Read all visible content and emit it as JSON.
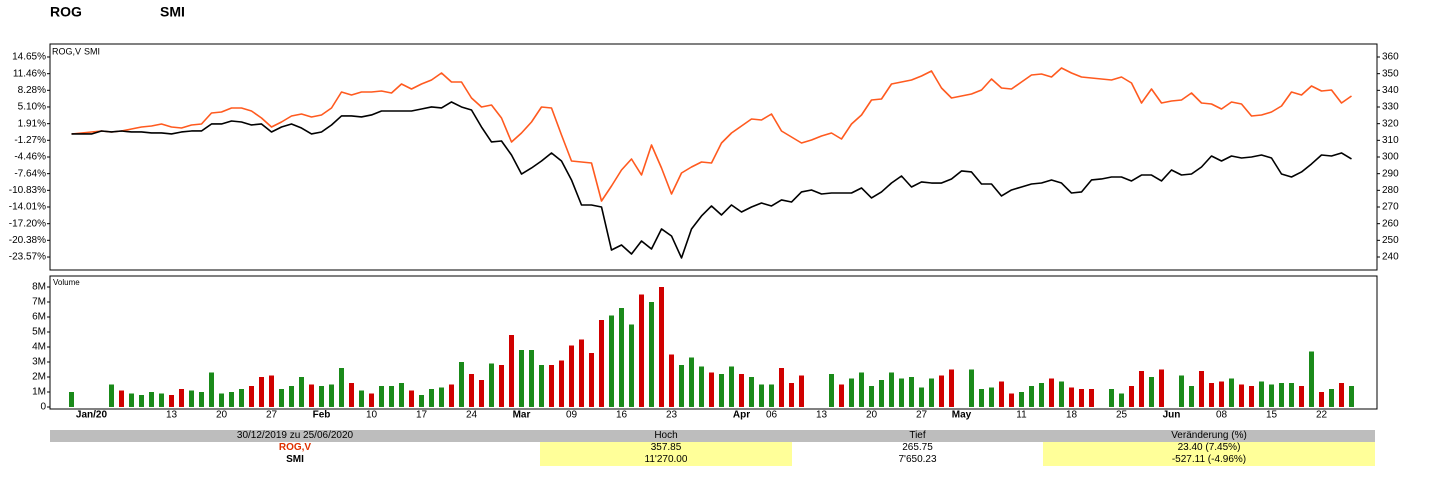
{
  "header": {
    "symbols": [
      {
        "text": "ROG",
        "color": "#ff4a12"
      },
      {
        "text": "SMI",
        "color": "#000000"
      }
    ]
  },
  "chart_data": [
    {
      "type": "line",
      "legend": "top-left",
      "ylim": [
        -26.05,
        17.13
      ],
      "yticks": [
        {
          "value": 14.65,
          "label": "14.65%"
        },
        {
          "value": 11.46,
          "label": "11.46%"
        },
        {
          "value": 8.28,
          "label": "8.28%"
        },
        {
          "value": 5.1,
          "label": "5.10%"
        },
        {
          "value": 1.91,
          "label": "1.91%"
        },
        {
          "value": -1.27,
          "label": "-1.27%"
        },
        {
          "value": -4.46,
          "label": "-4.46%"
        },
        {
          "value": -7.64,
          "label": "-7.64%"
        },
        {
          "value": -10.83,
          "label": "-10.83%"
        },
        {
          "value": -14.01,
          "label": "-14.01%"
        },
        {
          "value": -17.2,
          "label": "-17.20%"
        },
        {
          "value": -20.38,
          "label": "-20.38%"
        },
        {
          "value": -23.57,
          "label": "-23.57%"
        }
      ],
      "y2lim": [
        232.2,
        367.8
      ],
      "y2ticks": [
        360,
        350,
        340,
        330,
        320,
        310,
        300,
        290,
        280,
        270,
        260,
        250,
        240
      ],
      "series": [
        {
          "name": "ROG,V",
          "color": "#ff5a1f",
          "axis": "y2",
          "values": [
            313.8,
            314.4,
            315.0,
            315.6,
            315.0,
            315.6,
            316.8,
            318.0,
            318.6,
            319.8,
            318.0,
            317.4,
            319.2,
            319.8,
            326.4,
            327.0,
            329.4,
            329.4,
            327.6,
            323.4,
            318.0,
            321.0,
            324.6,
            325.8,
            324.0,
            325.2,
            329.4,
            339.0,
            337.2,
            339.0,
            339.0,
            339.6,
            338.4,
            343.8,
            340.8,
            343.8,
            346.2,
            350.4,
            345.0,
            345.0,
            335.4,
            330.0,
            331.2,
            323.4,
            309.0,
            314.4,
            321.0,
            330.0,
            329.4,
            313.2,
            297.6,
            297.0,
            296.4,
            273.6,
            282.6,
            292.2,
            298.8,
            289.2,
            307.2,
            293.4,
            277.8,
            290.4,
            294.0,
            297.0,
            296.4,
            308.4,
            314.4,
            318.6,
            322.8,
            322.2,
            325.8,
            315.6,
            312.0,
            308.4,
            310.2,
            312.6,
            314.4,
            310.8,
            319.8,
            325.2,
            334.2,
            334.8,
            343.8,
            345.0,
            346.2,
            348.6,
            351.6,
            341.4,
            335.4,
            336.6,
            337.8,
            340.2,
            346.8,
            341.4,
            340.8,
            345.0,
            349.2,
            349.8,
            348.0,
            353.4,
            350.4,
            348.0,
            347.4,
            346.8,
            346.2,
            348.0,
            344.4,
            332.4,
            340.8,
            332.4,
            333.6,
            334.2,
            338.4,
            332.4,
            331.8,
            328.8,
            333.0,
            331.8,
            324.6,
            325.2,
            327.0,
            330.6,
            339.0,
            337.2,
            342.6,
            339.6,
            340.2,
            332.4,
            336.6
          ]
        },
        {
          "name": "SMI",
          "color": "#000000",
          "values": [
            -0.06,
            -0.06,
            -0.06,
            0.51,
            0.32,
            0.51,
            0.32,
            0.32,
            0.13,
            0.13,
            -0.06,
            0.32,
            0.51,
            0.51,
            1.85,
            1.85,
            2.42,
            2.23,
            1.66,
            1.85,
            0.32,
            1.27,
            1.85,
            1.08,
            -0.06,
            0.32,
            1.66,
            3.38,
            3.38,
            3.19,
            3.57,
            4.33,
            4.33,
            4.33,
            4.33,
            4.71,
            5.1,
            4.91,
            6.05,
            5.1,
            4.52,
            1.27,
            -1.59,
            -1.4,
            -4.08,
            -7.71,
            -6.56,
            -5.22,
            -3.69,
            -5.22,
            -8.85,
            -13.63,
            -13.63,
            -14.01,
            -22.23,
            -21.27,
            -22.99,
            -20.51,
            -22.04,
            -18.21,
            -19.55,
            -23.75,
            -18.21,
            -15.73,
            -13.82,
            -15.54,
            -13.63,
            -14.97,
            -14.01,
            -13.25,
            -13.82,
            -12.67,
            -13.06,
            -11.14,
            -10.76,
            -11.53,
            -11.34,
            -11.34,
            -11.34,
            -10.38,
            -12.29,
            -11.14,
            -9.43,
            -8.09,
            -10.19,
            -9.23,
            -9.43,
            -9.43,
            -8.66,
            -7.13,
            -7.32,
            -9.62,
            -9.62,
            -11.91,
            -10.76,
            -10.19,
            -9.62,
            -9.43,
            -8.85,
            -9.43,
            -11.34,
            -11.14,
            -8.85,
            -8.66,
            -8.28,
            -8.28,
            -9.04,
            -7.9,
            -7.9,
            -9.04,
            -6.94,
            -7.9,
            -7.71,
            -6.37,
            -4.27,
            -5.22,
            -4.27,
            -4.65,
            -4.46,
            -4.08,
            -4.65,
            -7.71,
            -8.28,
            -7.32,
            -5.79,
            -4.08,
            -4.27,
            -3.69,
            -4.84
          ]
        }
      ]
    },
    {
      "type": "bar",
      "title": "Volume",
      "ylim": [
        0,
        8.6
      ],
      "yticks": [
        {
          "value": 8,
          "label": "8M"
        },
        {
          "value": 7,
          "label": "7M"
        },
        {
          "value": 6,
          "label": "6M"
        },
        {
          "value": 5,
          "label": "5M"
        },
        {
          "value": 4,
          "label": "4M"
        },
        {
          "value": 3,
          "label": "3M"
        },
        {
          "value": 2,
          "label": "2M"
        },
        {
          "value": 1,
          "label": "1M"
        },
        0
      ],
      "categories": [
        null,
        null,
        "Jan/20",
        null,
        null,
        null,
        null,
        null,
        null,
        null,
        "13",
        null,
        null,
        null,
        null,
        "20",
        null,
        null,
        null,
        null,
        "27",
        null,
        null,
        null,
        null,
        "Feb",
        null,
        null,
        null,
        null,
        "10",
        null,
        null,
        null,
        null,
        "17",
        null,
        null,
        null,
        null,
        "24",
        null,
        null,
        null,
        null,
        "Mar",
        null,
        null,
        null,
        null,
        "09",
        null,
        null,
        null,
        null,
        "16",
        null,
        null,
        null,
        null,
        "23",
        null,
        null,
        null,
        null,
        null,
        null,
        "Apr",
        null,
        null,
        "06",
        null,
        null,
        null,
        null,
        "13",
        null,
        null,
        null,
        null,
        "20",
        null,
        null,
        null,
        null,
        "27",
        null,
        null,
        null,
        "May",
        null,
        null,
        null,
        null,
        null,
        "11",
        null,
        null,
        null,
        null,
        "18",
        null,
        null,
        null,
        null,
        "25",
        null,
        null,
        null,
        null,
        "Jun",
        null,
        null,
        null,
        null,
        "08",
        null,
        null,
        null,
        null,
        "15",
        null,
        null,
        null,
        null,
        "22",
        null,
        null,
        null
      ],
      "values": [
        1.0,
        null,
        null,
        null,
        1.5,
        1.1,
        0.9,
        0.8,
        1.0,
        0.9,
        0.8,
        1.2,
        1.1,
        1.0,
        2.3,
        0.9,
        1.0,
        1.2,
        1.4,
        2.0,
        2.1,
        1.2,
        1.4,
        2.0,
        1.5,
        1.4,
        1.5,
        2.6,
        1.6,
        1.1,
        0.9,
        1.4,
        1.4,
        1.6,
        1.1,
        0.8,
        1.2,
        1.3,
        1.5,
        3.0,
        2.2,
        1.8,
        2.9,
        2.8,
        4.8,
        3.8,
        3.8,
        2.8,
        2.8,
        3.1,
        4.1,
        4.5,
        3.6,
        5.8,
        6.1,
        6.6,
        5.5,
        7.5,
        7.0,
        8.0,
        3.5,
        2.8,
        3.3,
        2.7,
        2.3,
        2.2,
        2.7,
        2.2,
        2.0,
        1.5,
        1.5,
        2.6,
        1.6,
        2.1,
        null,
        null,
        2.2,
        1.5,
        1.9,
        2.3,
        1.4,
        1.8,
        2.3,
        1.9,
        2.0,
        1.3,
        1.9,
        2.1,
        2.5,
        null,
        2.5,
        1.2,
        1.3,
        1.7,
        0.9,
        1.0,
        1.4,
        1.6,
        1.9,
        1.7,
        1.3,
        1.2,
        1.2,
        null,
        1.2,
        0.9,
        1.4,
        2.4,
        2.0,
        2.5,
        null,
        2.1,
        1.4,
        2.4,
        1.6,
        1.7,
        1.9,
        1.5,
        1.4,
        1.7,
        1.5,
        1.6,
        1.6,
        1.4,
        3.7,
        1.0,
        1.2,
        1.6,
        1.4
      ],
      "colors": [
        "#1a8a1a",
        null,
        null,
        null,
        "#1a8a1a",
        "#d00000",
        "#1a8a1a",
        "#1a8a1a",
        "#1a8a1a",
        "#1a8a1a",
        "#d00000",
        "#d00000",
        "#1a8a1a",
        "#1a8a1a",
        "#1a8a1a",
        "#1a8a1a",
        "#1a8a1a",
        "#1a8a1a",
        "#d00000",
        "#d00000",
        "#d00000",
        "#1a8a1a",
        "#1a8a1a",
        "#1a8a1a",
        "#d00000",
        "#1a8a1a",
        "#1a8a1a",
        "#1a8a1a",
        "#d00000",
        "#1a8a1a",
        "#d00000",
        "#1a8a1a",
        "#1a8a1a",
        "#1a8a1a",
        "#d00000",
        "#1a8a1a",
        "#1a8a1a",
        "#1a8a1a",
        "#d00000",
        "#1a8a1a",
        "#d00000",
        "#d00000",
        "#1a8a1a",
        "#d00000",
        "#d00000",
        "#1a8a1a",
        "#1a8a1a",
        "#1a8a1a",
        "#d00000",
        "#d00000",
        "#d00000",
        "#d00000",
        "#d00000",
        "#d00000",
        "#1a8a1a",
        "#1a8a1a",
        "#1a8a1a",
        "#d00000",
        "#1a8a1a",
        "#d00000",
        "#d00000",
        "#1a8a1a",
        "#1a8a1a",
        "#1a8a1a",
        "#d00000",
        "#1a8a1a",
        "#1a8a1a",
        "#d00000",
        "#1a8a1a",
        "#1a8a1a",
        "#1a8a1a",
        "#d00000",
        "#d00000",
        "#d00000",
        null,
        null,
        "#1a8a1a",
        "#d00000",
        "#1a8a1a",
        "#1a8a1a",
        "#1a8a1a",
        "#1a8a1a",
        "#1a8a1a",
        "#1a8a1a",
        "#1a8a1a",
        "#1a8a1a",
        "#1a8a1a",
        "#d00000",
        "#d00000",
        null,
        "#1a8a1a",
        "#1a8a1a",
        "#1a8a1a",
        "#d00000",
        "#d00000",
        "#1a8a1a",
        "#1a8a1a",
        "#1a8a1a",
        "#d00000",
        "#1a8a1a",
        "#d00000",
        "#d00000",
        "#d00000",
        null,
        "#1a8a1a",
        "#1a8a1a",
        "#d00000",
        "#d00000",
        "#1a8a1a",
        "#d00000",
        null,
        "#1a8a1a",
        "#1a8a1a",
        "#d00000",
        "#d00000",
        "#d00000",
        "#1a8a1a",
        "#d00000",
        "#d00000",
        "#1a8a1a",
        "#1a8a1a",
        "#1a8a1a",
        "#1a8a1a",
        "#d00000",
        "#1a8a1a",
        "#d00000",
        "#1a8a1a",
        "#d00000",
        "#1a8a1a"
      ]
    }
  ],
  "table": {
    "header": [
      "30/12/2019 zu 25/06/2020",
      "Hoch",
      "Tief",
      "Veränderung (%)"
    ],
    "rows": [
      [
        "ROG,V",
        "357.85",
        "265.75",
        "23.40 (7.45%)"
      ],
      [
        "SMI",
        "11'270.00",
        "7'650.23",
        "-527.11 (-4.96%)"
      ]
    ]
  }
}
